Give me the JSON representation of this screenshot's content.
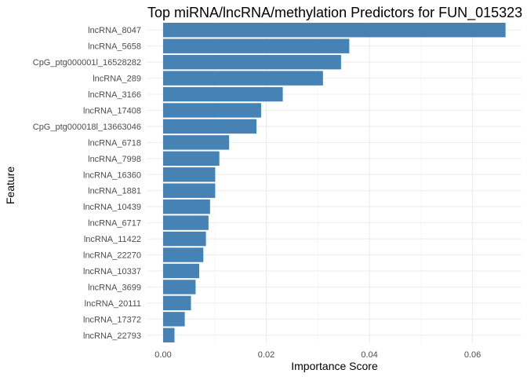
{
  "chart_data": {
    "type": "bar",
    "orientation": "horizontal",
    "title": "Top miRNA/lncRNA/methylation Predictors for FUN_015323",
    "xlabel": "Importance Score",
    "ylabel": "Feature",
    "xlim": [
      0,
      0.0665
    ],
    "x_ticks": [
      0.0,
      0.02,
      0.04,
      0.06
    ],
    "x_tick_labels": [
      "0.00",
      "0.02",
      "0.04",
      "0.06"
    ],
    "grid": true,
    "bar_color": "#4682B4",
    "categories": [
      "lncRNA_8047",
      "lncRNA_5658",
      "CpG_ptg000001l_16528282",
      "lncRNA_289",
      "lncRNA_3166",
      "lncRNA_17408",
      "CpG_ptg000018l_13663046",
      "lncRNA_6718",
      "lncRNA_7998",
      "lncRNA_16360",
      "lncRNA_1881",
      "lncRNA_10439",
      "lncRNA_6717",
      "lncRNA_11422",
      "lncRNA_22270",
      "lncRNA_10337",
      "lncRNA_3699",
      "lncRNA_20111",
      "lncRNA_17372",
      "lncRNA_22793"
    ],
    "values": [
      0.0664,
      0.0361,
      0.0345,
      0.031,
      0.0232,
      0.019,
      0.0181,
      0.0128,
      0.0109,
      0.0101,
      0.0101,
      0.0091,
      0.0088,
      0.0083,
      0.0078,
      0.007,
      0.0063,
      0.0054,
      0.0042,
      0.0022
    ]
  }
}
